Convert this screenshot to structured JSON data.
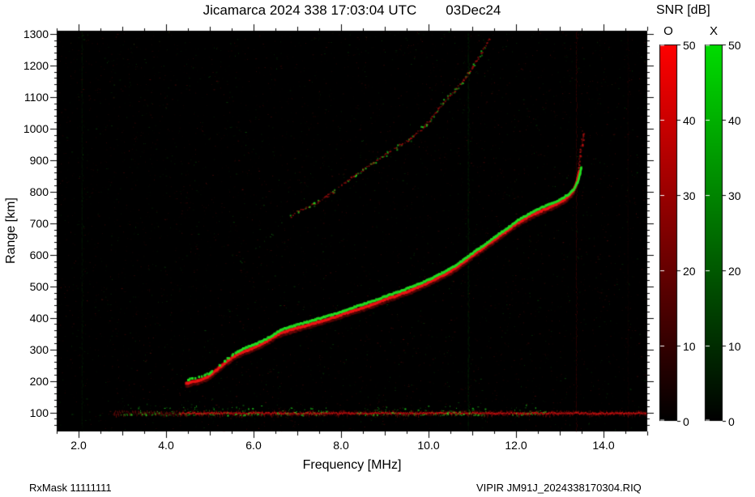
{
  "header": {
    "title_main": "Jicamarca 2024 338 17:03:04 UTC",
    "title_date": "03Dec24"
  },
  "footer": {
    "rx_mask": "RxMask 11111111",
    "file_label": "VIPIR  JM91J_2024338170304.RIQ"
  },
  "chart_data": {
    "type": "heatmap",
    "subtype": "ionogram",
    "title": "Jicamarca 2024 338 17:03:04 UTC  03Dec24",
    "xlabel": "Frequency [MHz]",
    "ylabel": "Range [km]",
    "xlim": [
      1.5,
      15.0
    ],
    "ylim": [
      40,
      1310
    ],
    "background": "#000000",
    "x_minor_step": 0.5,
    "y_minor_step": 20,
    "x_ticks": [
      {
        "v": 2.0,
        "label": "2.0"
      },
      {
        "v": 4.0,
        "label": "4.0"
      },
      {
        "v": 6.0,
        "label": "6.0"
      },
      {
        "v": 8.0,
        "label": "8.0"
      },
      {
        "v": 10.0,
        "label": "10.0"
      },
      {
        "v": 12.0,
        "label": "12.0"
      },
      {
        "v": 14.0,
        "label": "14.0"
      }
    ],
    "y_ticks": [
      {
        "v": 100,
        "label": "100"
      },
      {
        "v": 200,
        "label": "200"
      },
      {
        "v": 300,
        "label": "300"
      },
      {
        "v": 400,
        "label": "400"
      },
      {
        "v": 500,
        "label": "500"
      },
      {
        "v": 600,
        "label": "600"
      },
      {
        "v": 700,
        "label": "700"
      },
      {
        "v": 800,
        "label": "800"
      },
      {
        "v": 900,
        "label": "900"
      },
      {
        "v": 1000,
        "label": "1000"
      },
      {
        "v": 1100,
        "label": "1100"
      },
      {
        "v": 1200,
        "label": "1200"
      },
      {
        "v": 1300,
        "label": "1300"
      }
    ],
    "colorbar": {
      "title": "SNR [dB]",
      "min": 0,
      "max": 50,
      "ticks": [
        {
          "v": 0,
          "label": "0"
        },
        {
          "v": 10,
          "label": "10"
        },
        {
          "v": 20,
          "label": "20"
        },
        {
          "v": 30,
          "label": "30"
        },
        {
          "v": 40,
          "label": "40"
        },
        {
          "v": 50,
          "label": "50"
        }
      ],
      "bars": [
        {
          "label": "O",
          "color": "#ff0000"
        },
        {
          "label": "X",
          "color": "#00dd00"
        }
      ]
    },
    "series": [
      {
        "name": "O-mode-trace",
        "color": "#e81212",
        "points": [
          [
            4.45,
            192
          ],
          [
            4.7,
            200
          ],
          [
            4.95,
            212
          ],
          [
            5.15,
            235
          ],
          [
            5.35,
            258
          ],
          [
            5.55,
            278
          ],
          [
            5.75,
            292
          ],
          [
            5.95,
            303
          ],
          [
            6.15,
            315
          ],
          [
            6.35,
            330
          ],
          [
            6.55,
            348
          ],
          [
            6.75,
            358
          ],
          [
            7.0,
            368
          ],
          [
            7.25,
            378
          ],
          [
            7.5,
            388
          ],
          [
            7.75,
            398
          ],
          [
            8.0,
            410
          ],
          [
            8.25,
            422
          ],
          [
            8.5,
            433
          ],
          [
            8.75,
            445
          ],
          [
            9.0,
            458
          ],
          [
            9.25,
            470
          ],
          [
            9.5,
            483
          ],
          [
            9.75,
            497
          ],
          [
            10.0,
            512
          ],
          [
            10.25,
            530
          ],
          [
            10.5,
            548
          ],
          [
            10.75,
            572
          ],
          [
            11.0,
            598
          ],
          [
            11.25,
            622
          ],
          [
            11.5,
            648
          ],
          [
            11.75,
            672
          ],
          [
            12.0,
            698
          ],
          [
            12.25,
            718
          ],
          [
            12.5,
            735
          ],
          [
            12.75,
            750
          ],
          [
            13.0,
            766
          ],
          [
            13.15,
            780
          ],
          [
            13.28,
            798
          ],
          [
            13.36,
            820
          ],
          [
            13.41,
            845
          ],
          [
            13.44,
            868
          ]
        ]
      },
      {
        "name": "X-mode-trace",
        "color": "#22e022",
        "points": [
          [
            4.5,
            204
          ],
          [
            4.75,
            212
          ],
          [
            5.0,
            224
          ],
          [
            5.2,
            247
          ],
          [
            5.4,
            270
          ],
          [
            5.6,
            290
          ],
          [
            5.8,
            304
          ],
          [
            6.0,
            315
          ],
          [
            6.2,
            327
          ],
          [
            6.4,
            342
          ],
          [
            6.6,
            360
          ],
          [
            6.8,
            370
          ],
          [
            7.05,
            380
          ],
          [
            7.3,
            390
          ],
          [
            7.55,
            400
          ],
          [
            7.8,
            410
          ],
          [
            8.05,
            422
          ],
          [
            8.3,
            434
          ],
          [
            8.55,
            445
          ],
          [
            8.8,
            457
          ],
          [
            9.05,
            470
          ],
          [
            9.3,
            482
          ],
          [
            9.55,
            495
          ],
          [
            9.8,
            509
          ],
          [
            10.05,
            524
          ],
          [
            10.3,
            542
          ],
          [
            10.55,
            560
          ],
          [
            10.8,
            584
          ],
          [
            11.05,
            610
          ],
          [
            11.3,
            634
          ],
          [
            11.55,
            660
          ],
          [
            11.8,
            684
          ],
          [
            12.05,
            710
          ],
          [
            12.3,
            730
          ],
          [
            12.55,
            747
          ],
          [
            12.8,
            762
          ],
          [
            13.05,
            778
          ],
          [
            13.2,
            792
          ],
          [
            13.33,
            810
          ],
          [
            13.41,
            832
          ],
          [
            13.46,
            857
          ],
          [
            13.49,
            880
          ]
        ]
      },
      {
        "name": "second-hop-trace",
        "color": "#b81010",
        "points": [
          [
            5.6,
            560
          ],
          [
            5.8,
            590
          ],
          [
            6.0,
            612
          ],
          [
            6.2,
            636
          ],
          [
            6.4,
            664
          ],
          [
            6.6,
            700
          ],
          [
            6.8,
            718
          ],
          [
            7.0,
            740
          ],
          [
            7.3,
            758
          ],
          [
            7.6,
            780
          ],
          [
            8.0,
            822
          ],
          [
            8.4,
            864
          ],
          [
            8.8,
            900
          ],
          [
            9.2,
            936
          ],
          [
            9.6,
            972
          ],
          [
            10.0,
            1024
          ],
          [
            10.4,
            1096
          ],
          [
            10.7,
            1140
          ],
          [
            11.0,
            1196
          ],
          [
            11.2,
            1244
          ],
          [
            11.4,
            1290
          ]
        ]
      },
      {
        "name": "O-mode-spread-tail",
        "color": "#d01212",
        "points": [
          [
            13.4,
            850
          ],
          [
            13.44,
            895
          ],
          [
            13.47,
            930
          ],
          [
            13.5,
            965
          ],
          [
            13.52,
            995
          ]
        ]
      }
    ],
    "e_region": {
      "range_km": 100,
      "span": [
        2.8,
        15.0
      ],
      "bright_span": [
        4.3,
        15.0
      ],
      "green_spans": [
        [
          2.95,
          6.2
        ],
        [
          6.5,
          7.7
        ],
        [
          8.3,
          11.3
        ],
        [
          11.9,
          12.7
        ]
      ]
    },
    "rfi_lines": [
      {
        "f": 10.9,
        "color": "#00cc00",
        "alpha": 0.2
      },
      {
        "f": 13.37,
        "color": "#cc0000",
        "alpha": 0.25
      },
      {
        "f": 14.55,
        "color": "#aa0000",
        "alpha": 0.12
      },
      {
        "f": 2.07,
        "color": "#00bb00",
        "alpha": 0.15
      }
    ],
    "noise": {
      "seed": 1337,
      "red_count": 3800,
      "green_count": 1700
    }
  }
}
